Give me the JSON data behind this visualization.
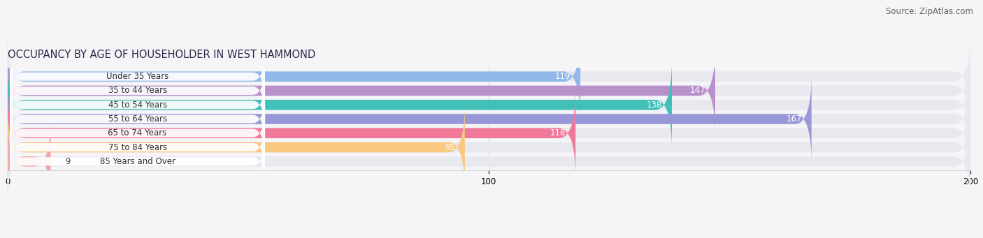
{
  "title": "OCCUPANCY BY AGE OF HOUSEHOLDER IN WEST HAMMOND",
  "source": "Source: ZipAtlas.com",
  "categories": [
    "Under 35 Years",
    "35 to 44 Years",
    "45 to 54 Years",
    "55 to 64 Years",
    "65 to 74 Years",
    "75 to 84 Years",
    "85 Years and Over"
  ],
  "values": [
    119,
    147,
    138,
    167,
    118,
    95,
    9
  ],
  "bar_colors": [
    "#90b8e8",
    "#b890cc",
    "#40c0b8",
    "#9898d8",
    "#f07898",
    "#f8c880",
    "#f0a8a8"
  ],
  "bar_bg_color": "#e8e8ee",
  "label_bg_color": "#ffffff",
  "xlim": [
    0,
    200
  ],
  "xticks": [
    0,
    100,
    200
  ],
  "title_fontsize": 10.5,
  "source_fontsize": 8.5,
  "label_fontsize": 8.5,
  "value_fontsize": 8.5,
  "bar_height": 0.72,
  "background_color": "#f5f5f8"
}
